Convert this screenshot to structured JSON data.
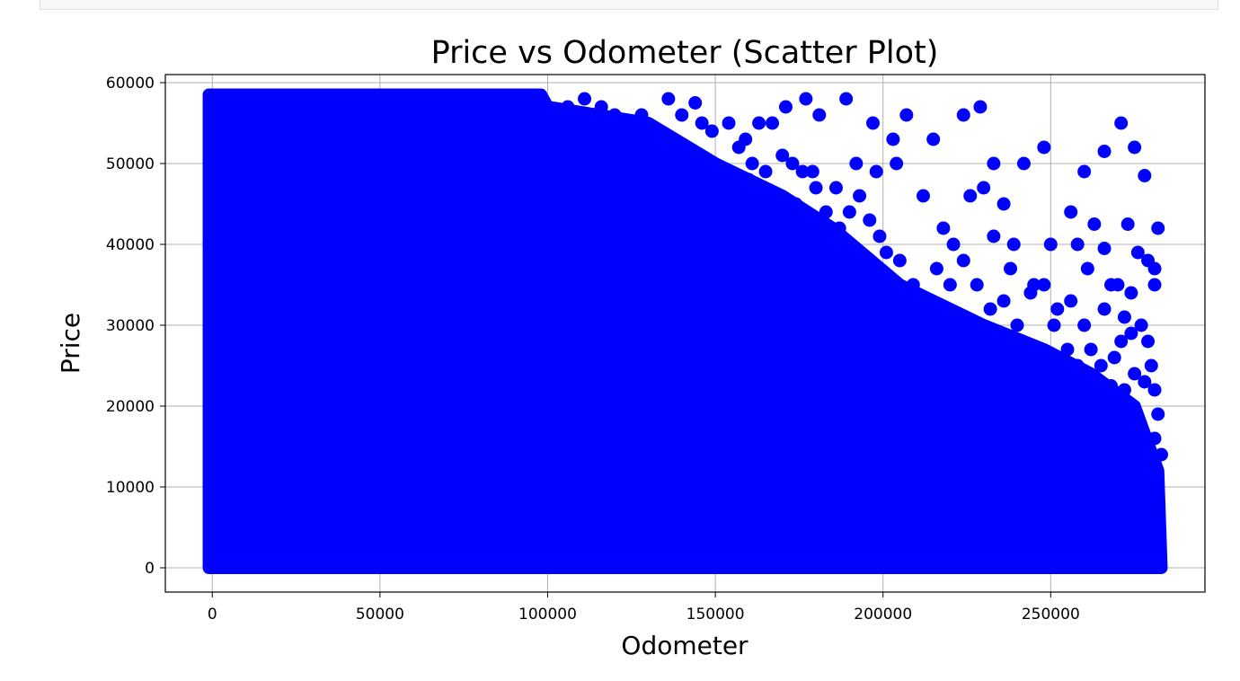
{
  "chart_data": {
    "type": "scatter",
    "title": "Price vs Odometer (Scatter Plot)",
    "xlabel": "Odometer",
    "ylabel": "Price",
    "xlim": [
      -14000,
      296000
    ],
    "ylim": [
      -3000,
      61000
    ],
    "xticks": [
      0,
      50000,
      100000,
      150000,
      200000,
      250000
    ],
    "yticks": [
      0,
      10000,
      20000,
      30000,
      40000,
      50000,
      60000
    ],
    "xtick_labels": [
      "0",
      "50000",
      "100000",
      "150000",
      "200000",
      "250000"
    ],
    "ytick_labels": [
      "0",
      "10000",
      "20000",
      "30000",
      "40000",
      "50000",
      "60000"
    ],
    "grid": true,
    "marker_color": "#0000ff",
    "dense_region": [
      [
        -1000,
        0
      ],
      [
        -1000,
        58500
      ],
      [
        98000,
        58500
      ],
      [
        100000,
        57000
      ],
      [
        130000,
        55000
      ],
      [
        150000,
        50000
      ],
      [
        170000,
        46000
      ],
      [
        185000,
        42000
      ],
      [
        205000,
        35000
      ],
      [
        230000,
        30000
      ],
      [
        248000,
        27000
      ],
      [
        262000,
        24000
      ],
      [
        275000,
        20000
      ],
      [
        282000,
        12000
      ],
      [
        283000,
        0
      ]
    ],
    "points": [
      [
        136000,
        58000
      ],
      [
        144000,
        57500
      ],
      [
        154000,
        55000
      ],
      [
        171000,
        57000
      ],
      [
        177000,
        58000
      ],
      [
        181000,
        56000
      ],
      [
        189000,
        58000
      ],
      [
        197000,
        55000
      ],
      [
        203000,
        53000
      ],
      [
        207000,
        56000
      ],
      [
        215000,
        53000
      ],
      [
        224000,
        56000
      ],
      [
        229000,
        57000
      ],
      [
        233000,
        50000
      ],
      [
        242000,
        50000
      ],
      [
        248000,
        52000
      ],
      [
        260000,
        49000
      ],
      [
        266000,
        51500
      ],
      [
        271000,
        55000
      ],
      [
        275000,
        52000
      ],
      [
        278000,
        48500
      ],
      [
        167000,
        55000
      ],
      [
        163000,
        55000
      ],
      [
        159000,
        53000
      ],
      [
        173000,
        50000
      ],
      [
        179000,
        49000
      ],
      [
        186000,
        47000
      ],
      [
        192000,
        50000
      ],
      [
        198000,
        49000
      ],
      [
        204000,
        50000
      ],
      [
        212000,
        46000
      ],
      [
        218000,
        42000
      ],
      [
        221000,
        40000
      ],
      [
        226000,
        46000
      ],
      [
        230000,
        47000
      ],
      [
        236000,
        45000
      ],
      [
        239000,
        40000
      ],
      [
        245000,
        35000
      ],
      [
        250000,
        40000
      ],
      [
        256000,
        44000
      ],
      [
        258000,
        40000
      ],
      [
        261000,
        37000
      ],
      [
        263000,
        42500
      ],
      [
        266000,
        39500
      ],
      [
        268000,
        35000
      ],
      [
        273000,
        42500
      ],
      [
        276000,
        39000
      ],
      [
        279000,
        38000
      ],
      [
        281000,
        37000
      ],
      [
        282000,
        42000
      ],
      [
        281000,
        35000
      ],
      [
        270000,
        35000
      ],
      [
        274000,
        34000
      ],
      [
        272000,
        31000
      ],
      [
        266000,
        32000
      ],
      [
        260000,
        30000
      ],
      [
        256000,
        33000
      ],
      [
        252000,
        32000
      ],
      [
        248000,
        35000
      ],
      [
        244000,
        34000
      ],
      [
        240000,
        30000
      ],
      [
        236000,
        33000
      ],
      [
        232000,
        32000
      ],
      [
        228000,
        35000
      ],
      [
        224000,
        38000
      ],
      [
        220000,
        35000
      ],
      [
        216000,
        37000
      ],
      [
        213000,
        33000
      ],
      [
        209000,
        35000
      ],
      [
        205000,
        38000
      ],
      [
        201000,
        39000
      ],
      [
        199000,
        41000
      ],
      [
        196000,
        43000
      ],
      [
        193000,
        46000
      ],
      [
        190000,
        44000
      ],
      [
        187000,
        42000
      ],
      [
        183000,
        44000
      ],
      [
        180000,
        47000
      ],
      [
        176000,
        49000
      ],
      [
        170000,
        51000
      ],
      [
        165000,
        49000
      ],
      [
        161000,
        50000
      ],
      [
        157000,
        52000
      ],
      [
        149000,
        54000
      ],
      [
        146000,
        55000
      ],
      [
        140000,
        56000
      ],
      [
        132000,
        54000
      ],
      [
        128000,
        56000
      ],
      [
        124000,
        55000
      ],
      [
        120000,
        56000
      ],
      [
        116000,
        57000
      ],
      [
        111000,
        58000
      ],
      [
        106000,
        57000
      ],
      [
        233000,
        41000
      ],
      [
        238000,
        37000
      ],
      [
        251000,
        30000
      ],
      [
        255000,
        27000
      ],
      [
        258000,
        25000
      ],
      [
        262000,
        27000
      ],
      [
        265000,
        25000
      ],
      [
        269000,
        26000
      ],
      [
        271000,
        28000
      ],
      [
        274000,
        29000
      ],
      [
        277000,
        30000
      ],
      [
        280000,
        25000
      ],
      [
        278000,
        23000
      ],
      [
        275000,
        24000
      ],
      [
        272000,
        22000
      ],
      [
        268000,
        22500
      ],
      [
        263000,
        22000
      ],
      [
        259000,
        20000
      ],
      [
        254000,
        21000
      ],
      [
        250000,
        23000
      ],
      [
        246000,
        25000
      ],
      [
        242000,
        26000
      ],
      [
        238000,
        28000
      ],
      [
        234000,
        29000
      ],
      [
        229000,
        27000
      ],
      [
        225000,
        25000
      ],
      [
        222000,
        28000
      ],
      [
        218000,
        30000
      ],
      [
        214000,
        31000
      ],
      [
        210000,
        32000
      ],
      [
        206000,
        31000
      ],
      [
        202000,
        34000
      ],
      [
        198000,
        37000
      ],
      [
        194000,
        38000
      ],
      [
        190000,
        39000
      ],
      [
        186000,
        40000
      ],
      [
        182000,
        41000
      ],
      [
        178000,
        43000
      ],
      [
        174000,
        45000
      ],
      [
        168000,
        45000
      ],
      [
        164000,
        47000
      ],
      [
        160000,
        48000
      ],
      [
        281000,
        16000
      ],
      [
        282000,
        19000
      ],
      [
        283000,
        14000
      ],
      [
        281000,
        22000
      ],
      [
        276000,
        18000
      ],
      [
        279000,
        28000
      ],
      [
        271000,
        19000
      ],
      [
        267000,
        17000
      ],
      [
        262000,
        15000
      ],
      [
        257000,
        17000
      ],
      [
        253000,
        18000
      ],
      [
        246000,
        20000
      ],
      [
        241000,
        22000
      ],
      [
        236000,
        24000
      ],
      [
        231000,
        23000
      ],
      [
        226000,
        21000
      ],
      [
        221000,
        23000
      ],
      [
        217000,
        25000
      ],
      [
        212000,
        26000
      ],
      [
        208000,
        28000
      ]
    ]
  }
}
